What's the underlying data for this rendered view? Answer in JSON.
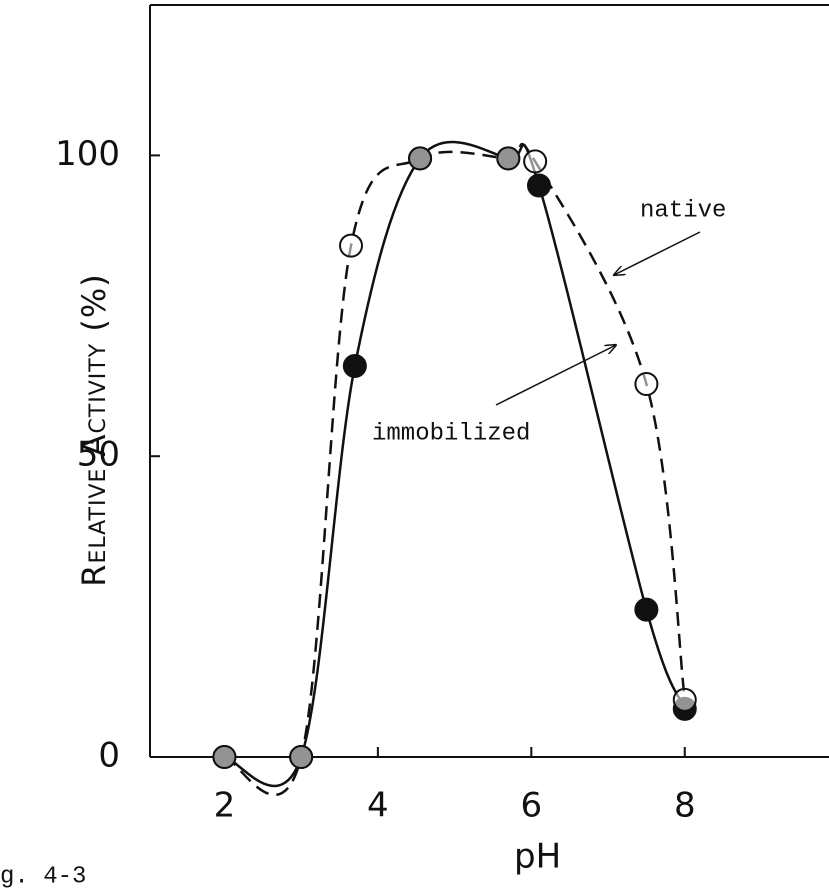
{
  "chart_data": {
    "type": "line",
    "xlabel": "pH",
    "ylabel": "Relative Activity (%)",
    "caption": "g. 4-3",
    "annotations": [
      "native",
      "immobilized"
    ],
    "xlim": [
      1.03,
      9.88
    ],
    "ylim": [
      0,
      125
    ],
    "xticks": [
      2,
      4,
      6,
      8
    ],
    "yticks": [
      0,
      50,
      100
    ],
    "series": [
      {
        "name": "native",
        "color": "#111111",
        "x": [
          2,
          3,
          3.65,
          4.55,
          5.7,
          6.05,
          7.5,
          8
        ],
        "values": [
          0,
          0,
          85,
          99.5,
          99.5,
          99,
          62,
          9.5
        ]
      },
      {
        "name": "immobilized",
        "color": "#111111",
        "x": [
          2,
          3,
          3.7,
          4.55,
          5.7,
          6.1,
          7.5,
          8
        ],
        "values": [
          0,
          0,
          65,
          99.5,
          99.5,
          95,
          24.5,
          8
        ]
      }
    ]
  }
}
